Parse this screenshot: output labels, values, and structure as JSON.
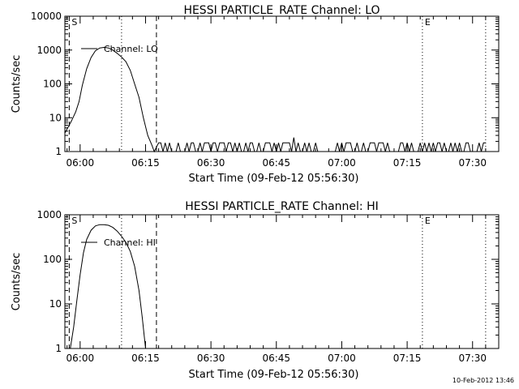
{
  "footer": {
    "timestamp": "10-Feb-2012 13:46"
  },
  "chart_data": [
    {
      "type": "line",
      "title": "HESSI PARTICLE_RATE Channel: LO",
      "xlabel": "Start Time (09-Feb-12 05:56:30)",
      "ylabel": "Counts/sec",
      "y_scale": "log",
      "ylim": [
        1,
        10000
      ],
      "x_tick_labels": [
        "06:00",
        "06:15",
        "06:30",
        "06:45",
        "07:00",
        "07:15",
        "07:30"
      ],
      "y_tick_labels": [
        "1",
        "10",
        "100",
        "1000",
        "10000"
      ],
      "legend": {
        "entry": "Channel: LO",
        "placement": "top-left"
      },
      "markers": {
        "start_label": "S",
        "end_label": "E"
      },
      "series": [
        {
          "name": "Channel: LO",
          "points": [
            [
              "05:56:30",
              3.5
            ],
            [
              "05:58:00",
              8
            ],
            [
              "05:59:00",
              15
            ],
            [
              "05:59:45",
              30
            ],
            [
              "06:00:30",
              90
            ],
            [
              "06:01:30",
              280
            ],
            [
              "06:02:30",
              600
            ],
            [
              "06:03:30",
              950
            ],
            [
              "06:04:30",
              1150
            ],
            [
              "06:05:30",
              1200
            ],
            [
              "06:06:30",
              1150
            ],
            [
              "06:07:30",
              1000
            ],
            [
              "06:08:30",
              800
            ],
            [
              "06:09:30",
              620
            ],
            [
              "06:10:30",
              450
            ],
            [
              "06:11:30",
              250
            ],
            [
              "06:12:30",
              100
            ],
            [
              "06:13:30",
              40
            ],
            [
              "06:14:30",
              10
            ],
            [
              "06:15:30",
              3
            ],
            [
              "06:16:30",
              1.5
            ],
            [
              "06:17:00",
              1
            ]
          ],
          "noise_segment": {
            "start": "06:18:00",
            "end": "07:33:00",
            "low": 1,
            "high": 1.8,
            "spike_time": "06:49:00",
            "spike_value": 2.6
          }
        }
      ],
      "vertical_lines": [
        {
          "time": "05:57:30",
          "style": "dashed",
          "label": "S"
        },
        {
          "time": "06:17:30",
          "style": "dashed"
        },
        {
          "time": "06:09:30",
          "style": "dotted"
        },
        {
          "time": "07:18:30",
          "style": "dotted",
          "label": "E"
        },
        {
          "time": "07:33:00",
          "style": "dotted"
        }
      ]
    },
    {
      "type": "line",
      "title": "HESSI PARTICLE_RATE Channel: HI",
      "xlabel": "Start Time (09-Feb-12 05:56:30)",
      "ylabel": "Counts/sec",
      "y_scale": "log",
      "ylim": [
        1,
        1000
      ],
      "x_tick_labels": [
        "06:00",
        "06:15",
        "06:30",
        "06:45",
        "07:00",
        "07:15",
        "07:30"
      ],
      "y_tick_labels": [
        "1",
        "10",
        "100",
        "1000"
      ],
      "legend": {
        "entry": "Channel: HI",
        "placement": "top-left"
      },
      "markers": {
        "start_label": "S",
        "end_label": "E"
      },
      "series": [
        {
          "name": "Channel: HI",
          "points": [
            [
              "05:57:45",
              1
            ],
            [
              "05:58:30",
              3
            ],
            [
              "05:59:15",
              12
            ],
            [
              "06:00:00",
              45
            ],
            [
              "06:00:45",
              140
            ],
            [
              "06:01:30",
              280
            ],
            [
              "06:02:30",
              450
            ],
            [
              "06:03:30",
              560
            ],
            [
              "06:04:30",
              600
            ],
            [
              "06:05:30",
              600
            ],
            [
              "06:06:30",
              580
            ],
            [
              "06:07:30",
              520
            ],
            [
              "06:08:30",
              430
            ],
            [
              "06:09:30",
              330
            ],
            [
              "06:10:30",
              240
            ],
            [
              "06:11:30",
              150
            ],
            [
              "06:12:30",
              70
            ],
            [
              "06:13:30",
              20
            ],
            [
              "06:14:15",
              5
            ],
            [
              "06:15:00",
              1
            ]
          ]
        }
      ],
      "vertical_lines": [
        {
          "time": "05:57:30",
          "style": "dashed",
          "label": "S"
        },
        {
          "time": "06:17:30",
          "style": "dashed"
        },
        {
          "time": "06:09:30",
          "style": "dotted"
        },
        {
          "time": "07:18:30",
          "style": "dotted",
          "label": "E"
        },
        {
          "time": "07:33:00",
          "style": "dotted"
        }
      ]
    }
  ]
}
